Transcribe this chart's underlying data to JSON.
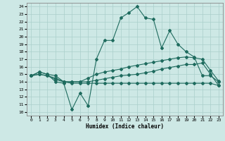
{
  "xlabel": "Humidex (Indice chaleur)",
  "bg_color": "#cde8e5",
  "line_color": "#1e6b5e",
  "grid_color": "#aacfcb",
  "xlim": [
    -0.5,
    23.5
  ],
  "ylim": [
    9.5,
    24.5
  ],
  "xticks": [
    0,
    1,
    2,
    3,
    4,
    5,
    6,
    7,
    8,
    9,
    10,
    11,
    12,
    13,
    14,
    15,
    16,
    17,
    18,
    19,
    20,
    21,
    22,
    23
  ],
  "yticks": [
    10,
    11,
    12,
    13,
    14,
    15,
    16,
    17,
    18,
    19,
    20,
    21,
    22,
    23,
    24
  ],
  "line1_y": [
    14.8,
    15.3,
    15.0,
    14.0,
    13.8,
    10.3,
    12.5,
    10.8,
    17.0,
    19.5,
    19.5,
    22.5,
    23.2,
    24.0,
    22.5,
    22.3,
    18.5,
    20.8,
    19.0,
    18.0,
    17.3,
    14.8,
    14.8,
    14.0
  ],
  "line2_y": [
    14.8,
    15.3,
    15.0,
    14.8,
    14.0,
    14.0,
    14.0,
    14.5,
    15.0,
    15.3,
    15.5,
    15.7,
    16.0,
    16.2,
    16.4,
    16.6,
    16.8,
    17.0,
    17.2,
    17.3,
    17.2,
    17.0,
    15.5,
    14.1
  ],
  "line3_y": [
    14.8,
    15.0,
    14.8,
    14.5,
    14.0,
    14.0,
    14.0,
    14.0,
    14.2,
    14.4,
    14.6,
    14.8,
    14.9,
    15.0,
    15.2,
    15.4,
    15.7,
    15.9,
    16.1,
    16.3,
    16.3,
    16.5,
    15.0,
    13.5
  ],
  "line4_y": [
    14.8,
    15.0,
    14.8,
    14.3,
    14.0,
    13.8,
    13.8,
    13.8,
    13.8,
    13.8,
    13.8,
    13.8,
    13.8,
    13.8,
    13.8,
    13.8,
    13.8,
    13.8,
    13.8,
    13.8,
    13.8,
    13.8,
    13.8,
    13.5
  ]
}
